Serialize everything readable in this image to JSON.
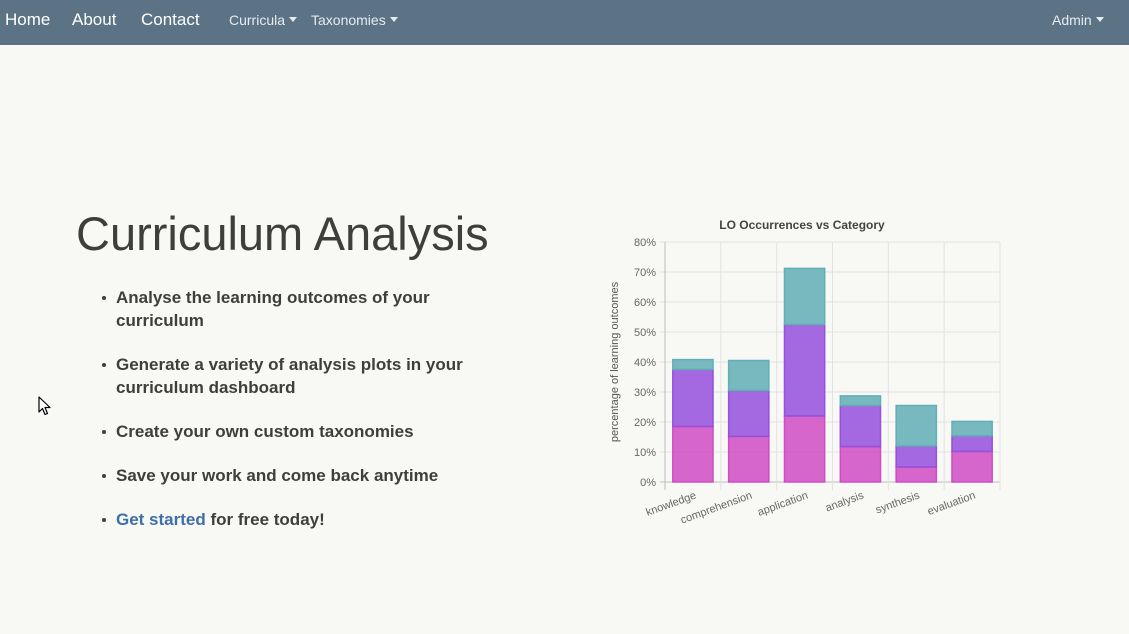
{
  "nav": {
    "home": "Home",
    "about": "About",
    "contact": "Contact",
    "curricula": "Curricula",
    "taxonomies": "Taxonomies",
    "admin": "Admin"
  },
  "hero": {
    "title": "Curriculum Analysis",
    "features": [
      "Analyse the learning outcomes of your curriculum",
      "Generate a variety of analysis plots in your curriculum dashboard",
      "Create your own custom taxonomies",
      "Save your work and come back anytime"
    ],
    "cta_link": "Get started",
    "cta_rest": " for free today!"
  },
  "chart_data": {
    "type": "bar",
    "stacked": true,
    "title": "LO Occurrences vs Category",
    "xlabel": "",
    "ylabel": "percentage of learning outcomes",
    "categories": [
      "knowledge",
      "comprehension",
      "application",
      "analysis",
      "synthesis",
      "evaluation"
    ],
    "series": [
      {
        "values": [
          18.5,
          15.2,
          22.0,
          11.8,
          5.0,
          10.2
        ],
        "color": "#d04cc4"
      },
      {
        "values": [
          19.0,
          15.3,
          30.5,
          13.7,
          7.0,
          5.2
        ],
        "color": "#9550dc"
      },
      {
        "values": [
          3.3,
          10.0,
          18.7,
          3.2,
          13.5,
          4.8
        ],
        "color": "#62aeb6"
      }
    ],
    "yticks": [
      "0%",
      "10%",
      "20%",
      "30%",
      "40%",
      "50%",
      "60%",
      "70%",
      "80%"
    ],
    "ylim": [
      0,
      80
    ],
    "grid": true,
    "legend": "none"
  },
  "colors": {
    "navbar": "#5c7385",
    "background": "#f8f8f5",
    "text": "#3e3f3a",
    "link": "#3e6fa6"
  },
  "icons": {
    "cursor": "mouse-pointer-icon"
  }
}
